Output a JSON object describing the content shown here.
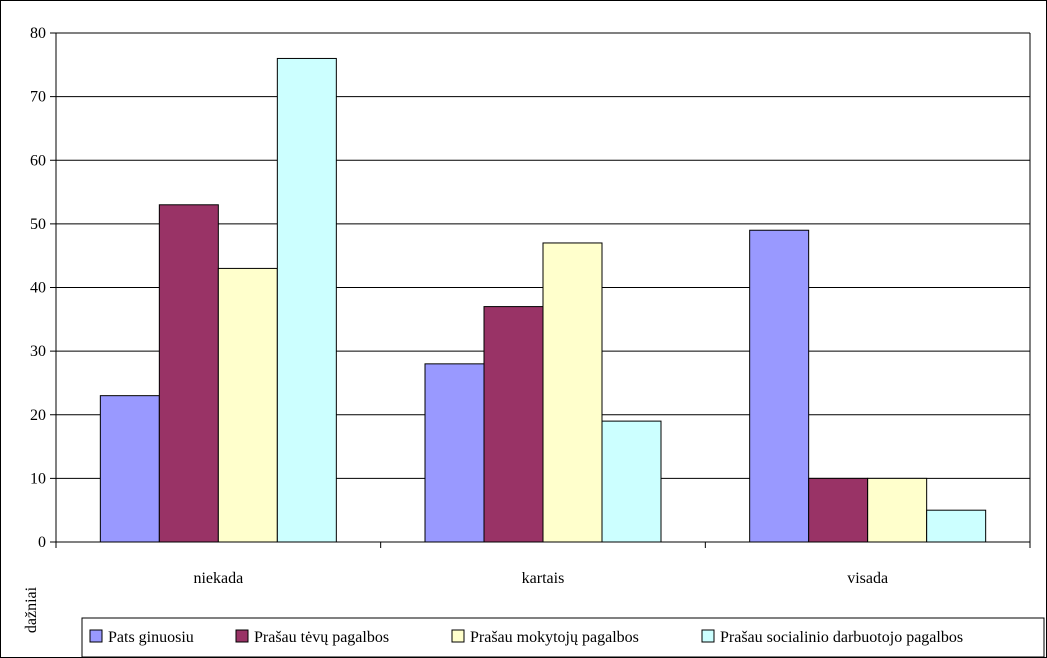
{
  "chart_data": {
    "type": "bar",
    "title": "",
    "xlabel": "",
    "ylabel": "dažniai",
    "ylim": [
      0,
      80
    ],
    "yticks": [
      0,
      10,
      20,
      30,
      40,
      50,
      60,
      70,
      80
    ],
    "grid": true,
    "legend_position": "bottom",
    "categories": [
      "niekada",
      "kartais",
      "visada"
    ],
    "series": [
      {
        "name": "Pats ginuosiu",
        "color": "#9999ff",
        "values": [
          23,
          28,
          49
        ]
      },
      {
        "name": "Prašau tėvų pagalbos",
        "color": "#993366",
        "values": [
          53,
          37,
          10
        ]
      },
      {
        "name": "Prašau mokytojų pagalbos",
        "color": "#ffffcc",
        "values": [
          43,
          47,
          10
        ]
      },
      {
        "name": "Prašau socialinio darbuotojo pagalbos",
        "color": "#ccffff",
        "values": [
          76,
          19,
          5
        ]
      }
    ]
  }
}
